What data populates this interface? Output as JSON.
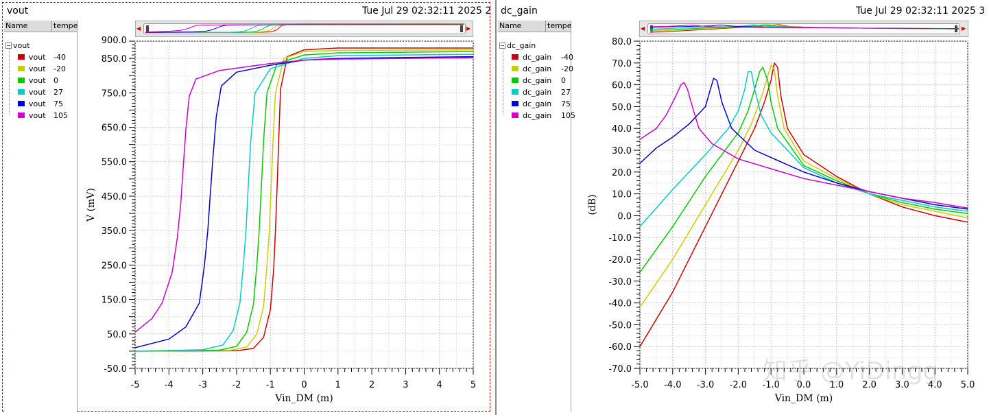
{
  "left": {
    "title": "vout",
    "date": "Tue Jul 29 02:32:11 2025  2",
    "legend": {
      "col_name": "Name",
      "col_temp": "tempe",
      "group": "vout",
      "items": [
        {
          "name": "vout",
          "temp": "-40",
          "color": "#cc0000"
        },
        {
          "name": "vout",
          "temp": "-20",
          "color": "#cccc00"
        },
        {
          "name": "vout",
          "temp": "0",
          "color": "#00cc00"
        },
        {
          "name": "vout",
          "temp": "27",
          "color": "#00cccc"
        },
        {
          "name": "vout",
          "temp": "75",
          "color": "#0000cc"
        },
        {
          "name": "vout",
          "temp": "105",
          "color": "#cc00cc"
        }
      ]
    }
  },
  "right": {
    "title": "dc_gain",
    "date": "Tue Jul 29 02:32:11 2025  3",
    "legend": {
      "col_name": "Name",
      "col_temp": "tempe",
      "group": "dc_gain",
      "items": [
        {
          "name": "dc_gain",
          "temp": "-40",
          "color": "#cc0000"
        },
        {
          "name": "dc_gain",
          "temp": "-20",
          "color": "#cccc00"
        },
        {
          "name": "dc_gain",
          "temp": "0",
          "color": "#00cc00"
        },
        {
          "name": "dc_gain",
          "temp": "27",
          "color": "#00cccc"
        },
        {
          "name": "dc_gain",
          "temp": "75",
          "color": "#0000cc"
        },
        {
          "name": "dc_gain",
          "temp": "105",
          "color": "#cc00cc"
        }
      ]
    }
  },
  "watermark": "知乎 @YiDingg",
  "chart_data": [
    {
      "type": "line",
      "xlabel": "Vin_DM (m)",
      "ylabel": "V (mV)",
      "xlim": [
        -5,
        5
      ],
      "ylim": [
        -50,
        900
      ],
      "xticks": [
        "-5",
        "-4",
        "-3",
        "-2",
        "-1",
        "0",
        "1",
        "2",
        "3",
        "4",
        "5"
      ],
      "yticks": [
        "-50.0",
        "50.0",
        "150.0",
        "250.0",
        "350.0",
        "450.0",
        "550.0",
        "650.0",
        "750.0",
        "850.0",
        "900.0"
      ],
      "grid": true,
      "series": [
        {
          "name": "vout -40",
          "color": "#cc0000",
          "x": [
            -5,
            -2,
            -1.5,
            -1.2,
            -1.0,
            -0.9,
            -0.85,
            -0.8,
            -0.75,
            -0.7,
            -0.5,
            0,
            1,
            5
          ],
          "y": [
            0,
            1,
            8,
            40,
            120,
            240,
            350,
            480,
            620,
            760,
            855,
            875,
            880,
            880
          ]
        },
        {
          "name": "vout -20",
          "color": "#cccc00",
          "x": [
            -5,
            -2.2,
            -1.7,
            -1.4,
            -1.2,
            -1.1,
            -1.03,
            -0.98,
            -0.92,
            -0.85,
            -0.6,
            0,
            1,
            5
          ],
          "y": [
            0,
            2,
            12,
            50,
            130,
            250,
            350,
            470,
            610,
            750,
            850,
            870,
            873,
            875
          ]
        },
        {
          "name": "vout 0",
          "color": "#00cc00",
          "x": [
            -5,
            -2.5,
            -2.0,
            -1.7,
            -1.5,
            -1.4,
            -1.33,
            -1.27,
            -1.2,
            -1.1,
            -0.8,
            0,
            1,
            5
          ],
          "y": [
            0,
            3,
            14,
            55,
            135,
            250,
            350,
            470,
            610,
            750,
            835,
            860,
            866,
            870
          ]
        },
        {
          "name": "vout 27",
          "color": "#00cccc",
          "x": [
            -5,
            -3.0,
            -2.4,
            -2.1,
            -1.9,
            -1.8,
            -1.72,
            -1.66,
            -1.58,
            -1.45,
            -1.0,
            0,
            1,
            5
          ],
          "y": [
            0,
            4,
            18,
            60,
            140,
            250,
            350,
            470,
            610,
            750,
            820,
            850,
            858,
            862
          ]
        },
        {
          "name": "vout 75",
          "color": "#0000cc",
          "x": [
            -5,
            -4.0,
            -3.5,
            -3.1,
            -2.95,
            -2.85,
            -2.78,
            -2.7,
            -2.6,
            -2.45,
            -2.0,
            -1.0,
            0,
            1,
            5
          ],
          "y": [
            10,
            35,
            70,
            140,
            250,
            350,
            450,
            560,
            680,
            770,
            810,
            830,
            845,
            850,
            855
          ]
        },
        {
          "name": "vout 105",
          "color": "#cc00cc",
          "x": [
            -5,
            -4.5,
            -4.2,
            -3.9,
            -3.75,
            -3.65,
            -3.58,
            -3.5,
            -3.4,
            -3.2,
            -2.5,
            -1.0,
            0,
            1,
            5
          ],
          "y": [
            55,
            95,
            140,
            230,
            330,
            430,
            530,
            640,
            740,
            790,
            815,
            835,
            845,
            848,
            852
          ]
        }
      ]
    },
    {
      "type": "line",
      "xlabel": "Vin_DM (m)",
      "ylabel": "(dB)",
      "xlim": [
        -5,
        5
      ],
      "ylim": [
        -70,
        80
      ],
      "xticks": [
        "-5.0",
        "-4.0",
        "-3.0",
        "-2.0",
        "-1.0",
        "0.0",
        "1.0",
        "2.0",
        "3.0",
        "4.0",
        "5.0"
      ],
      "yticks": [
        "-70.0",
        "-60.0",
        "-50.0",
        "-40.0",
        "-30.0",
        "-20.0",
        "-10.0",
        "0.0",
        "10.0",
        "20.0",
        "30.0",
        "40.0",
        "50.0",
        "60.0",
        "70.0",
        "80.0"
      ],
      "grid": true,
      "series": [
        {
          "name": "dc_gain -40",
          "color": "#cc0000",
          "x": [
            -5,
            -4,
            -3,
            -2,
            -1.5,
            -1.2,
            -1.0,
            -0.9,
            -0.8,
            -0.7,
            -0.5,
            0,
            1,
            2,
            3,
            4,
            5
          ],
          "y": [
            -60,
            -35,
            -5,
            25,
            40,
            52,
            62,
            70,
            68,
            55,
            40,
            28,
            18,
            10,
            4,
            0,
            -3
          ]
        },
        {
          "name": "dc_gain -20",
          "color": "#cccc00",
          "x": [
            -5,
            -4,
            -3,
            -2,
            -1.6,
            -1.3,
            -1.1,
            -1.0,
            -0.9,
            -0.8,
            -0.6,
            0,
            1,
            2,
            3,
            4,
            5
          ],
          "y": [
            -42,
            -20,
            5,
            30,
            42,
            54,
            64,
            69,
            67,
            55,
            40,
            25,
            17,
            10,
            5,
            2,
            -1
          ]
        },
        {
          "name": "dc_gain 0",
          "color": "#00cc00",
          "x": [
            -5,
            -4,
            -3,
            -2,
            -1.7,
            -1.5,
            -1.35,
            -1.25,
            -1.1,
            -1.0,
            -0.8,
            0,
            1,
            2,
            3,
            4,
            5
          ],
          "y": [
            -26,
            -5,
            18,
            38,
            48,
            58,
            66,
            68,
            62,
            52,
            40,
            23,
            16,
            10,
            6,
            3,
            1
          ]
        },
        {
          "name": "dc_gain 27",
          "color": "#00cccc",
          "x": [
            -5,
            -4,
            -3,
            -2.3,
            -2.0,
            -1.8,
            -1.7,
            -1.6,
            -1.5,
            -1.3,
            -1.0,
            0,
            1,
            2,
            3,
            4,
            5
          ],
          "y": [
            -5,
            12,
            28,
            40,
            48,
            58,
            66,
            66,
            58,
            46,
            38,
            22,
            15,
            10,
            7,
            4,
            2
          ]
        },
        {
          "name": "dc_gain 75",
          "color": "#0000cc",
          "x": [
            -5,
            -4.5,
            -4,
            -3.5,
            -3.0,
            -2.85,
            -2.75,
            -2.65,
            -2.5,
            -2.2,
            -1.5,
            0,
            1,
            2,
            3,
            4,
            5
          ],
          "y": [
            24,
            31,
            36,
            42,
            50,
            58,
            63,
            62,
            52,
            40,
            30,
            20,
            15,
            11,
            8,
            5,
            3
          ]
        },
        {
          "name": "dc_gain 105",
          "color": "#cc00cc",
          "x": [
            -5,
            -4.5,
            -4.2,
            -3.9,
            -3.75,
            -3.65,
            -3.55,
            -3.4,
            -3.2,
            -2.8,
            -2.0,
            0,
            1,
            2,
            3,
            4,
            5
          ],
          "y": [
            35,
            40,
            46,
            55,
            60,
            61,
            58,
            50,
            40,
            33,
            26,
            17,
            14,
            11,
            8,
            6,
            3.5
          ]
        }
      ]
    }
  ]
}
